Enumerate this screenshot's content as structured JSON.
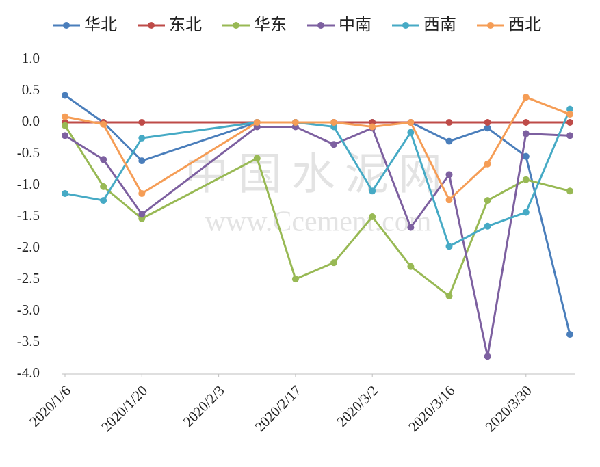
{
  "chart_data": {
    "type": "line",
    "x": [
      "2020/1/6",
      "2020/1/13",
      "2020/1/20",
      "2020/2/10",
      "2020/2/17",
      "2020/2/24",
      "2020/3/2",
      "2020/3/9",
      "2020/3/16",
      "2020/3/23",
      "2020/3/30",
      "2020/4/7"
    ],
    "series": [
      {
        "name": "华北",
        "color": "#4a7ebb",
        "values": [
          0.43,
          0.0,
          -0.61,
          0.0,
          0.0,
          0.0,
          0.0,
          0.0,
          -0.3,
          -0.09,
          -0.54,
          -3.37
        ]
      },
      {
        "name": "东北",
        "color": "#be4b48",
        "values": [
          0.0,
          0.0,
          0.0,
          0.0,
          0.0,
          0.0,
          0.0,
          0.0,
          0.0,
          0.0,
          0.0,
          0.0
        ]
      },
      {
        "name": "华东",
        "color": "#98b954",
        "values": [
          -0.05,
          -1.02,
          -1.53,
          -0.57,
          -2.49,
          -2.23,
          -1.5,
          -2.29,
          -2.76,
          -1.24,
          -0.91,
          -1.09
        ]
      },
      {
        "name": "中南",
        "color": "#7d60a0",
        "values": [
          -0.21,
          -0.59,
          -1.46,
          -0.07,
          -0.07,
          -0.35,
          -0.09,
          -1.67,
          -0.83,
          -3.72,
          -0.18,
          -0.21
        ]
      },
      {
        "name": "西南",
        "color": "#46aac5",
        "values": [
          -1.13,
          -1.24,
          -0.25,
          0.0,
          0.0,
          -0.07,
          -1.09,
          -0.16,
          -1.97,
          -1.65,
          -1.43,
          0.21
        ]
      },
      {
        "name": "西北",
        "color": "#f59d56",
        "values": [
          0.09,
          -0.03,
          -1.13,
          0.0,
          0.0,
          0.0,
          -0.07,
          0.0,
          -1.23,
          -0.66,
          0.4,
          0.13
        ]
      }
    ],
    "xlim": [
      "2020/1/6",
      "2020/4/8"
    ],
    "xticks": [
      "2020/1/6",
      "2020/1/20",
      "2020/2/3",
      "2020/2/17",
      "2020/3/2",
      "2020/3/16",
      "2020/3/30"
    ],
    "ylim": [
      -4,
      1
    ],
    "yticks": [
      {
        "value": 1,
        "label": "1.0"
      },
      0.5,
      {
        "value": 0,
        "label": "0.0"
      },
      -0.5,
      {
        "value": -1,
        "label": "-1.0"
      },
      -1.5,
      {
        "value": -2,
        "label": "-2.0"
      },
      -2.5,
      {
        "value": -3,
        "label": "-3.0"
      },
      -3.5,
      {
        "value": -4,
        "label": "-4.0"
      }
    ],
    "grid": false,
    "legend": "top",
    "watermark": [
      "中国水泥网",
      "www.Ccement.com"
    ]
  }
}
